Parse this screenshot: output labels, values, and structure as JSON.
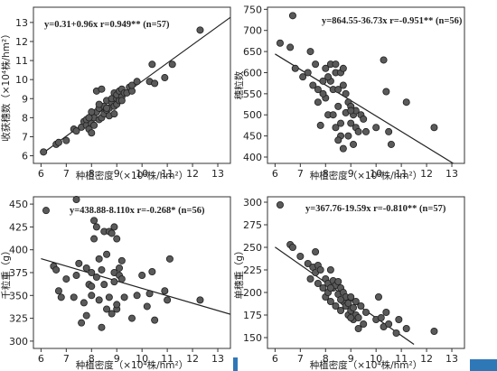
{
  "chart_data": [
    {
      "type": "scatter",
      "equation": "y=0.31+0.96x   r=0.949** (n=57)",
      "xlabel": "种植密度（×10⁴株/hm²）",
      "ylabel": "收获穗数（×10⁴株/hm²）",
      "xlim": [
        5.7,
        13.5
      ],
      "ylim": [
        5.6,
        13.8
      ],
      "xticks": [
        6,
        7,
        8,
        9,
        10,
        11,
        12,
        13
      ],
      "yticks": [
        6,
        7,
        8,
        9,
        10,
        11,
        12,
        13
      ],
      "fit": {
        "intercept": 0.31,
        "slope": 0.96
      },
      "points": [
        [
          6.1,
          6.2
        ],
        [
          6.6,
          6.6
        ],
        [
          6.7,
          6.7
        ],
        [
          7.0,
          6.8
        ],
        [
          7.3,
          7.4
        ],
        [
          7.4,
          7.3
        ],
        [
          7.6,
          7.5
        ],
        [
          7.7,
          7.8
        ],
        [
          7.8,
          7.6
        ],
        [
          7.8,
          7.9
        ],
        [
          7.9,
          7.4
        ],
        [
          8.0,
          7.2
        ],
        [
          8.0,
          7.7
        ],
        [
          8.0,
          8.1
        ],
        [
          8.1,
          8.0
        ],
        [
          8.1,
          7.6
        ],
        [
          8.2,
          8.3
        ],
        [
          8.2,
          9.4
        ],
        [
          8.3,
          7.9
        ],
        [
          8.3,
          8.5
        ],
        [
          8.4,
          8.0
        ],
        [
          8.4,
          9.5
        ],
        [
          8.5,
          8.6
        ],
        [
          8.5,
          8.2
        ],
        [
          8.6,
          8.4
        ],
        [
          8.6,
          8.9
        ],
        [
          8.7,
          8.5
        ],
        [
          8.7,
          8.1
        ],
        [
          8.8,
          8.8
        ],
        [
          8.8,
          9.0
        ],
        [
          8.9,
          9.3
        ],
        [
          8.9,
          8.6
        ],
        [
          9.0,
          9.0
        ],
        [
          9.0,
          8.7
        ],
        [
          9.0,
          9.2
        ],
        [
          9.1,
          8.9
        ],
        [
          9.1,
          9.4
        ],
        [
          9.2,
          9.1
        ],
        [
          9.2,
          9.5
        ],
        [
          9.3,
          9.3
        ],
        [
          9.4,
          9.3
        ],
        [
          9.5,
          9.6
        ],
        [
          9.6,
          9.4
        ],
        [
          9.6,
          9.7
        ],
        [
          9.8,
          9.9
        ],
        [
          10.3,
          9.9
        ],
        [
          10.4,
          10.8
        ],
        [
          10.5,
          9.8
        ],
        [
          10.9,
          10.1
        ],
        [
          11.2,
          10.8
        ],
        [
          12.3,
          12.6
        ],
        [
          8.9,
          8.2
        ],
        [
          8.3,
          8.7
        ],
        [
          7.9,
          8.0
        ],
        [
          8.0,
          8.3
        ],
        [
          8.6,
          8.5
        ],
        [
          9.2,
          8.9
        ]
      ]
    },
    {
      "type": "scatter",
      "equation": "y=864.55-36.73x   r=-0.951** (n=56)",
      "xlabel": "种植密度（×10⁴株/hm²）",
      "ylabel": "穗粒数",
      "xlim": [
        5.7,
        13.5
      ],
      "ylim": [
        385,
        755
      ],
      "xticks": [
        6,
        7,
        8,
        9,
        10,
        11,
        12,
        13
      ],
      "yticks": [
        400,
        450,
        500,
        550,
        600,
        650,
        700,
        750
      ],
      "fit": {
        "intercept": 864.55,
        "slope": -36.73
      },
      "points": [
        [
          6.2,
          670
        ],
        [
          6.6,
          660
        ],
        [
          6.7,
          735
        ],
        [
          6.8,
          610
        ],
        [
          7.1,
          590
        ],
        [
          7.3,
          600
        ],
        [
          7.4,
          650
        ],
        [
          7.5,
          570
        ],
        [
          7.6,
          620
        ],
        [
          7.7,
          530
        ],
        [
          7.7,
          560
        ],
        [
          7.8,
          475
        ],
        [
          7.9,
          580
        ],
        [
          8.0,
          610
        ],
        [
          8.0,
          540
        ],
        [
          8.1,
          500
        ],
        [
          8.2,
          580
        ],
        [
          8.2,
          620
        ],
        [
          8.3,
          560
        ],
        [
          8.3,
          500
        ],
        [
          8.4,
          600
        ],
        [
          8.4,
          470
        ],
        [
          8.5,
          560
        ],
        [
          8.5,
          520
        ],
        [
          8.6,
          600
        ],
        [
          8.6,
          480
        ],
        [
          8.6,
          450
        ],
        [
          8.7,
          610
        ],
        [
          8.7,
          420
        ],
        [
          8.8,
          550
        ],
        [
          8.8,
          505
        ],
        [
          8.9,
          530
        ],
        [
          8.9,
          450
        ],
        [
          9.0,
          480
        ],
        [
          9.0,
          520
        ],
        [
          9.1,
          430
        ],
        [
          9.1,
          500
        ],
        [
          9.2,
          470
        ],
        [
          9.2,
          510
        ],
        [
          9.3,
          460
        ],
        [
          9.4,
          500
        ],
        [
          9.5,
          490
        ],
        [
          9.6,
          460
        ],
        [
          10.0,
          470
        ],
        [
          10.3,
          630
        ],
        [
          10.4,
          555
        ],
        [
          10.5,
          460
        ],
        [
          10.6,
          430
        ],
        [
          11.2,
          530
        ],
        [
          12.3,
          470
        ],
        [
          8.4,
          620
        ],
        [
          8.1,
          590
        ],
        [
          7.9,
          550
        ],
        [
          8.7,
          570
        ],
        [
          9.0,
          510
        ],
        [
          8.5,
          440
        ]
      ]
    },
    {
      "type": "scatter",
      "equation": "y=438.88-8.110x   r=-0.268* (n=56)",
      "xlabel": "种植密度（×10⁴株/hm²）",
      "ylabel": "千粒重（g）",
      "xlim": [
        5.7,
        13.5
      ],
      "ylim": [
        292,
        458
      ],
      "xticks": [
        6,
        7,
        8,
        9,
        10,
        11,
        12,
        13
      ],
      "yticks": [
        300,
        325,
        350,
        375,
        400,
        425,
        450
      ],
      "fit": {
        "intercept": 438.88,
        "slope": -8.11
      },
      "points": [
        [
          6.2,
          443
        ],
        [
          6.5,
          382
        ],
        [
          6.6,
          378
        ],
        [
          6.7,
          355
        ],
        [
          6.8,
          348
        ],
        [
          7.0,
          368
        ],
        [
          7.3,
          348
        ],
        [
          7.4,
          372
        ],
        [
          7.4,
          455
        ],
        [
          7.5,
          385
        ],
        [
          7.6,
          320
        ],
        [
          7.7,
          342
        ],
        [
          7.8,
          380
        ],
        [
          7.8,
          328
        ],
        [
          7.9,
          362
        ],
        [
          8.0,
          350
        ],
        [
          8.0,
          360
        ],
        [
          8.1,
          432
        ],
        [
          8.1,
          412
        ],
        [
          8.2,
          425
        ],
        [
          8.2,
          370
        ],
        [
          8.3,
          390
        ],
        [
          8.3,
          345
        ],
        [
          8.4,
          378
        ],
        [
          8.4,
          315
        ],
        [
          8.5,
          420
        ],
        [
          8.5,
          362
        ],
        [
          8.6,
          395
        ],
        [
          8.6,
          335
        ],
        [
          8.7,
          420
        ],
        [
          8.7,
          348
        ],
        [
          8.8,
          418
        ],
        [
          8.8,
          330
        ],
        [
          8.9,
          375
        ],
        [
          8.9,
          365
        ],
        [
          9.0,
          412
        ],
        [
          9.0,
          335
        ],
        [
          9.1,
          380
        ],
        [
          9.1,
          372
        ],
        [
          9.2,
          388
        ],
        [
          9.2,
          368
        ],
        [
          9.3,
          348
        ],
        [
          9.6,
          325
        ],
        [
          9.8,
          350
        ],
        [
          10.0,
          372
        ],
        [
          10.2,
          338
        ],
        [
          10.3,
          352
        ],
        [
          10.4,
          376
        ],
        [
          10.5,
          323
        ],
        [
          10.9,
          355
        ],
        [
          11.0,
          345
        ],
        [
          11.1,
          390
        ],
        [
          12.3,
          345
        ],
        [
          8.0,
          375
        ],
        [
          8.9,
          425
        ],
        [
          9.0,
          340
        ]
      ]
    },
    {
      "type": "scatter",
      "equation": "y=367.76-19.59x   r=-0.810** (n=57)",
      "xlabel": "种植密度（×10⁴株/hm²）",
      "ylabel": "单穗重（g）",
      "xlim": [
        5.7,
        13.5
      ],
      "ylim": [
        138,
        306
      ],
      "xticks": [
        6,
        7,
        8,
        9,
        10,
        11,
        12,
        13
      ],
      "yticks": [
        150,
        175,
        200,
        225,
        250,
        275,
        300
      ],
      "fit": {
        "intercept": 367.76,
        "slope": -19.59
      },
      "points": [
        [
          6.2,
          297
        ],
        [
          6.6,
          253
        ],
        [
          6.7,
          250
        ],
        [
          7.0,
          240
        ],
        [
          7.3,
          232
        ],
        [
          7.4,
          215
        ],
        [
          7.5,
          228
        ],
        [
          7.6,
          222
        ],
        [
          7.7,
          210
        ],
        [
          7.7,
          230
        ],
        [
          7.8,
          225
        ],
        [
          7.9,
          205
        ],
        [
          8.0,
          215
        ],
        [
          8.0,
          195
        ],
        [
          8.1,
          210
        ],
        [
          8.1,
          200
        ],
        [
          8.2,
          225
        ],
        [
          8.2,
          190
        ],
        [
          8.3,
          213
        ],
        [
          8.3,
          205
        ],
        [
          8.4,
          208
        ],
        [
          8.4,
          185
        ],
        [
          8.5,
          198
        ],
        [
          8.5,
          212
        ],
        [
          8.6,
          205
        ],
        [
          8.6,
          180
        ],
        [
          8.7,
          200
        ],
        [
          8.7,
          190
        ],
        [
          8.8,
          195
        ],
        [
          8.8,
          185
        ],
        [
          8.9,
          188
        ],
        [
          8.9,
          175
        ],
        [
          9.0,
          195
        ],
        [
          9.0,
          180
        ],
        [
          9.1,
          170
        ],
        [
          9.1,
          183
        ],
        [
          9.2,
          175
        ],
        [
          9.2,
          190
        ],
        [
          9.3,
          172
        ],
        [
          9.4,
          185
        ],
        [
          9.5,
          165
        ],
        [
          9.6,
          178
        ],
        [
          10.0,
          170
        ],
        [
          10.1,
          195
        ],
        [
          10.2,
          172
        ],
        [
          10.3,
          162
        ],
        [
          10.5,
          165
        ],
        [
          10.8,
          155
        ],
        [
          10.9,
          170
        ],
        [
          11.2,
          160
        ],
        [
          12.3,
          157
        ],
        [
          7.6,
          245
        ],
        [
          8.2,
          205
        ],
        [
          8.6,
          192
        ],
        [
          9.0,
          172
        ],
        [
          9.3,
          160
        ],
        [
          10.4,
          178
        ]
      ]
    }
  ],
  "decor": {
    "accent_color": "#2f78b8",
    "point_color": "#5a5a5a",
    "line_color": "#222222"
  }
}
